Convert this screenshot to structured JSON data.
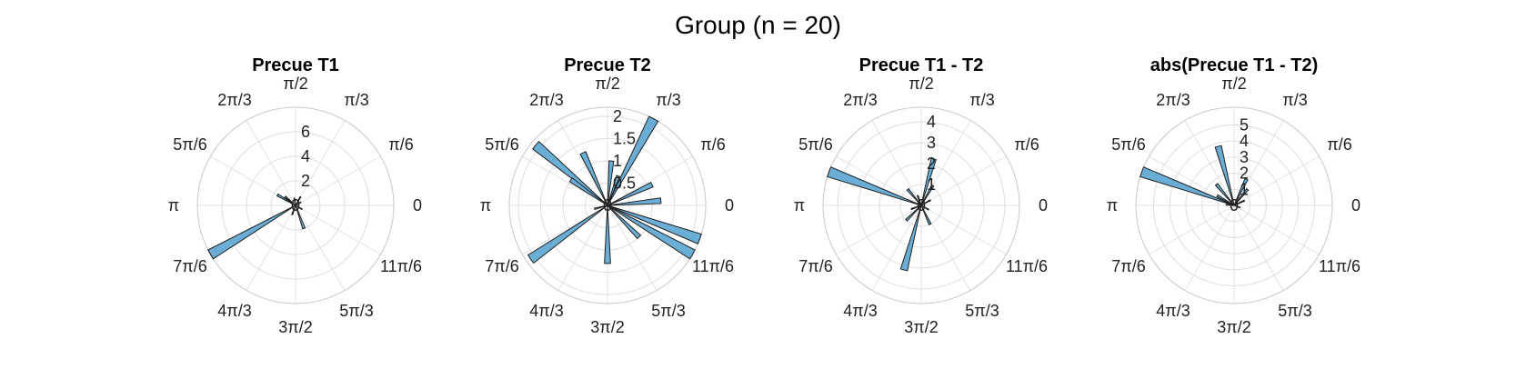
{
  "figure_title": "Group (n = 20)",
  "angle_labels": [
    "0",
    "π/6",
    "π/3",
    "π/2",
    "2π/3",
    "5π/6",
    "π",
    "7π/6",
    "4π/3",
    "3π/2",
    "5π/3",
    "11π/6"
  ],
  "colors": {
    "bar_fill": "#6aaed6",
    "bar_edge": "#1f1f1f",
    "grid": "#dedede"
  },
  "chart_data": [
    {
      "type": "polar-histogram",
      "title": "Precue T1",
      "rlim": [
        0,
        8
      ],
      "rticks": [
        2,
        4,
        6
      ],
      "rtick_labels": [
        "2",
        "4",
        "6"
      ],
      "bin_width_deg": 6,
      "bins": [
        {
          "angle_deg": 210,
          "value": 8.0
        },
        {
          "angle_deg": 150,
          "value": 1.7
        },
        {
          "angle_deg": 140,
          "value": 1.1
        },
        {
          "angle_deg": 100,
          "value": 0.6
        },
        {
          "angle_deg": 60,
          "value": 0.8
        },
        {
          "angle_deg": 30,
          "value": 0.5
        },
        {
          "angle_deg": 330,
          "value": 0.6
        },
        {
          "angle_deg": 290,
          "value": 2.0
        },
        {
          "angle_deg": 250,
          "value": 0.8
        }
      ]
    },
    {
      "type": "polar-histogram",
      "title": "Precue T2",
      "rlim": [
        0,
        2.2
      ],
      "rticks": [
        0.5,
        1,
        1.5,
        2
      ],
      "rtick_labels": [
        "0.5",
        "1",
        "1.5",
        "2"
      ],
      "bin_width_deg": 6,
      "bins": [
        {
          "angle_deg": 62,
          "value": 2.2
        },
        {
          "angle_deg": 140,
          "value": 2.1
        },
        {
          "angle_deg": 115,
          "value": 1.3
        },
        {
          "angle_deg": 145,
          "value": 1.0
        },
        {
          "angle_deg": 85,
          "value": 1.0
        },
        {
          "angle_deg": 70,
          "value": 0.7
        },
        {
          "angle_deg": 25,
          "value": 1.1
        },
        {
          "angle_deg": 5,
          "value": 1.2
        },
        {
          "angle_deg": 340,
          "value": 2.2
        },
        {
          "angle_deg": 330,
          "value": 2.2
        },
        {
          "angle_deg": 315,
          "value": 1.0
        },
        {
          "angle_deg": 270,
          "value": 1.3
        },
        {
          "angle_deg": 215,
          "value": 2.1
        },
        {
          "angle_deg": 195,
          "value": 0.3
        }
      ]
    },
    {
      "type": "polar-histogram",
      "title": "Precue T1 - T2",
      "rlim": [
        0,
        4.7
      ],
      "rticks": [
        1,
        2,
        3,
        4
      ],
      "rtick_labels": [
        "1",
        "2",
        "3",
        "4"
      ],
      "bin_width_deg": 6,
      "bins": [
        {
          "angle_deg": 160,
          "value": 4.7
        },
        {
          "angle_deg": 75,
          "value": 2.3
        },
        {
          "angle_deg": 60,
          "value": 1.1
        },
        {
          "angle_deg": 130,
          "value": 1.0
        },
        {
          "angle_deg": 110,
          "value": 0.5
        },
        {
          "angle_deg": 30,
          "value": 0.5
        },
        {
          "angle_deg": 200,
          "value": 0.5
        },
        {
          "angle_deg": 225,
          "value": 1.0
        },
        {
          "angle_deg": 255,
          "value": 3.2
        },
        {
          "angle_deg": 295,
          "value": 1.0
        },
        {
          "angle_deg": 330,
          "value": 0.4
        }
      ]
    },
    {
      "type": "polar-histogram",
      "title": "abs(Precue T1 - T2)",
      "rlim": [
        0,
        6.1
      ],
      "rticks": [
        1,
        2,
        3,
        4,
        5
      ],
      "rtick_labels": [
        "1",
        "2",
        "3",
        "4",
        "5"
      ],
      "bin_width_deg": 6,
      "bins": [
        {
          "angle_deg": 160,
          "value": 6.1
        },
        {
          "angle_deg": 105,
          "value": 3.8
        },
        {
          "angle_deg": 130,
          "value": 1.7
        },
        {
          "angle_deg": 150,
          "value": 1.2
        },
        {
          "angle_deg": 65,
          "value": 1.8
        },
        {
          "angle_deg": 50,
          "value": 1.3
        },
        {
          "angle_deg": 25,
          "value": 0.7
        },
        {
          "angle_deg": 175,
          "value": 0.5
        },
        {
          "angle_deg": 340,
          "value": 0.4
        }
      ]
    }
  ]
}
